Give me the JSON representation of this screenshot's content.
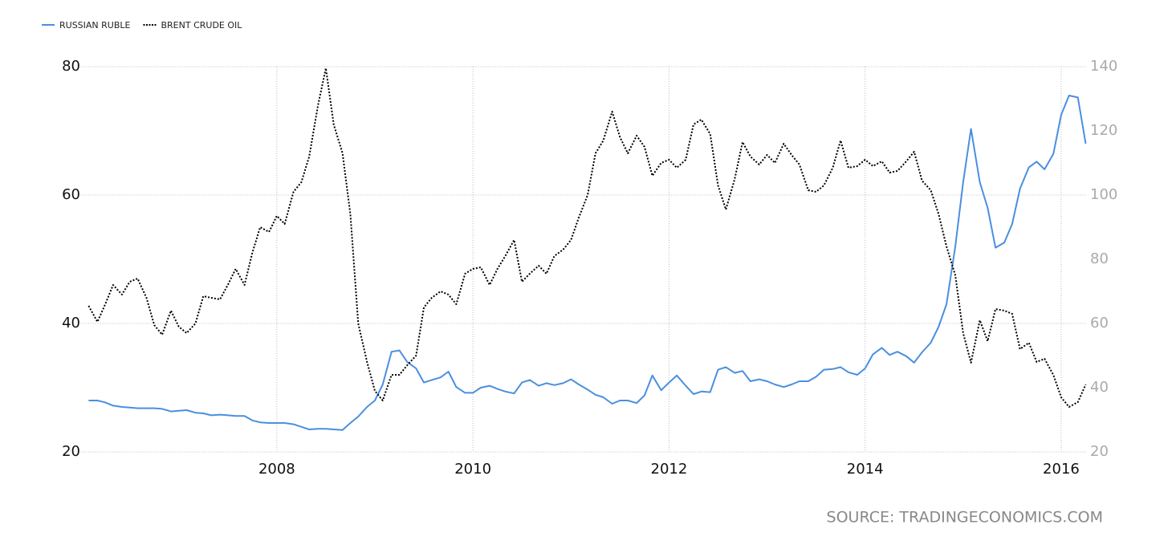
{
  "chart_data": {
    "type": "line",
    "source": "SOURCE: TRADINGECONOMICS.COM",
    "x": [
      2006.08,
      2006.17,
      2006.25,
      2006.33,
      2006.42,
      2006.5,
      2006.58,
      2006.67,
      2006.75,
      2006.83,
      2006.92,
      2007,
      2007.08,
      2007.17,
      2007.25,
      2007.33,
      2007.42,
      2007.5,
      2007.58,
      2007.67,
      2007.75,
      2007.83,
      2007.92,
      2008,
      2008.08,
      2008.17,
      2008.25,
      2008.33,
      2008.42,
      2008.5,
      2008.58,
      2008.67,
      2008.75,
      2008.83,
      2008.92,
      2009,
      2009.08,
      2009.17,
      2009.25,
      2009.33,
      2009.42,
      2009.5,
      2009.58,
      2009.67,
      2009.75,
      2009.83,
      2009.92,
      2010,
      2010.08,
      2010.17,
      2010.25,
      2010.33,
      2010.42,
      2010.5,
      2010.58,
      2010.67,
      2010.75,
      2010.83,
      2010.92,
      2011,
      2011.08,
      2011.17,
      2011.25,
      2011.33,
      2011.42,
      2011.5,
      2011.58,
      2011.67,
      2011.75,
      2011.83,
      2011.92,
      2012,
      2012.08,
      2012.17,
      2012.25,
      2012.33,
      2012.42,
      2012.5,
      2012.58,
      2012.67,
      2012.75,
      2012.83,
      2012.92,
      2013,
      2013.08,
      2013.17,
      2013.25,
      2013.33,
      2013.42,
      2013.5,
      2013.58,
      2013.67,
      2013.75,
      2013.83,
      2013.92,
      2014,
      2014.08,
      2014.17,
      2014.25,
      2014.33,
      2014.42,
      2014.5,
      2014.58,
      2014.67,
      2014.75,
      2014.83,
      2014.92,
      2015,
      2015.08,
      2015.17,
      2015.25,
      2015.33,
      2015.42,
      2015.5,
      2015.58,
      2015.67,
      2015.75,
      2015.83,
      2015.92,
      2016,
      2016.08,
      2016.17,
      2016.25
    ],
    "series": [
      {
        "name": "RUSSIAN RUBLE",
        "color": "#4a8fe0",
        "dash": "solid",
        "axis": "y",
        "values": [
          28,
          28,
          27.7,
          27.2,
          27,
          26.9,
          26.8,
          26.8,
          26.8,
          26.7,
          26.3,
          26.4,
          26.5,
          26.1,
          26,
          25.7,
          25.8,
          25.7,
          25.6,
          25.6,
          24.9,
          24.6,
          24.5,
          24.5,
          24.5,
          24.3,
          23.9,
          23.5,
          23.6,
          23.6,
          23.5,
          23.4,
          24.5,
          25.5,
          27,
          28,
          30.5,
          35.6,
          35.8,
          34,
          33,
          30.8,
          31.2,
          31.6,
          32.5,
          30.1,
          29.2,
          29.2,
          30,
          30.3,
          29.8,
          29.4,
          29.1,
          30.8,
          31.2,
          30.3,
          30.7,
          30.4,
          30.7,
          31.3,
          30.5,
          29.7,
          28.9,
          28.5,
          27.5,
          28,
          28,
          27.6,
          28.8,
          31.9,
          29.6,
          30.8,
          31.9,
          30.3,
          29,
          29.4,
          29.3,
          32.8,
          33.2,
          32.3,
          32.6,
          31,
          31.3,
          31,
          30.5,
          30.1,
          30.5,
          31,
          31,
          31.7,
          32.8,
          32.9,
          33.2,
          32.4,
          32,
          33,
          35.2,
          36.2,
          35.1,
          35.6,
          34.9,
          33.9,
          35.5,
          37,
          39.5,
          43,
          52,
          62,
          70.3,
          62,
          58,
          51.8,
          52.6,
          55.5,
          61,
          64.3,
          65.2,
          64,
          66.4,
          72.5,
          75.5,
          75.2,
          68
        ]
      },
      {
        "name": "BRENT CRUDE OIL",
        "color": "#000000",
        "dash": "dotted",
        "axis": "y2",
        "values": [
          65.5,
          60.5,
          66,
          72,
          69,
          73,
          74,
          68,
          59.5,
          56.5,
          64,
          59,
          57,
          60,
          68.5,
          68,
          67.5,
          72,
          77,
          72,
          82,
          90,
          88.5,
          93.5,
          91,
          101,
          104,
          112,
          128,
          139.5,
          122,
          113,
          94,
          60,
          48,
          39,
          36,
          44,
          44,
          47,
          50,
          65,
          68,
          70,
          69,
          66,
          75.5,
          77,
          77.5,
          72,
          77,
          81,
          86,
          73,
          75.5,
          78,
          75.5,
          81,
          83,
          86,
          93,
          100,
          113,
          117,
          126,
          118,
          113,
          118.5,
          115,
          106,
          110,
          111,
          108.5,
          111,
          122,
          123.5,
          119,
          103,
          95.5,
          105,
          116.5,
          112,
          109.5,
          112.5,
          110,
          116,
          112.5,
          109.5,
          101.5,
          101,
          103,
          108.5,
          117,
          108.5,
          109,
          111,
          109,
          110.5,
          107,
          107.5,
          110.5,
          113.5,
          104.5,
          101.5,
          94,
          84,
          75,
          57,
          47.8,
          61,
          54.5,
          64.5,
          64,
          63,
          52,
          54,
          48,
          49,
          44,
          37,
          34,
          35.5,
          41
        ]
      }
    ],
    "xlim": [
      2006,
      2016.25
    ],
    "xticks": [
      2008,
      2010,
      2012,
      2014,
      2016
    ],
    "ylim": [
      20,
      80
    ],
    "yticks": [
      20,
      40,
      60,
      80
    ],
    "y2lim": [
      20,
      140
    ],
    "y2ticks": [
      20,
      40,
      60,
      80,
      100,
      120,
      140
    ],
    "grid": true,
    "legend": "top-left"
  }
}
